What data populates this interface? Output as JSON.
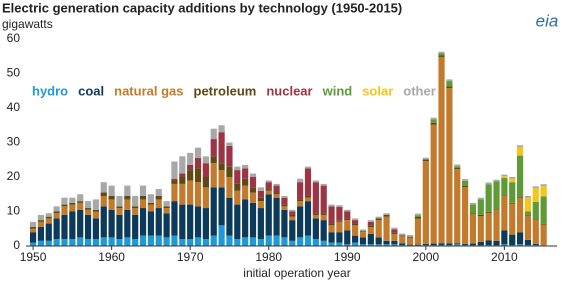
{
  "chart_data": {
    "type": "stacked-bar",
    "title": "Electric generation capacity additions by technology (1950-2015)",
    "subtitle": "gigawatts",
    "x_label": "initial operation year",
    "x": [
      1950,
      1951,
      1952,
      1953,
      1954,
      1955,
      1956,
      1957,
      1958,
      1959,
      1960,
      1961,
      1962,
      1963,
      1964,
      1965,
      1966,
      1967,
      1968,
      1969,
      1970,
      1971,
      1972,
      1973,
      1974,
      1975,
      1976,
      1977,
      1978,
      1979,
      1980,
      1981,
      1982,
      1983,
      1984,
      1985,
      1986,
      1987,
      1988,
      1989,
      1990,
      1991,
      1992,
      1993,
      1994,
      1995,
      1996,
      1997,
      1998,
      1999,
      2000,
      2001,
      2002,
      2003,
      2004,
      2005,
      2006,
      2007,
      2008,
      2009,
      2010,
      2011,
      2012,
      2013,
      2014,
      2015
    ],
    "xlim": [
      1949.1,
      2016.7
    ],
    "xticks": [
      1950,
      1960,
      1970,
      1980,
      1990,
      2000,
      2010
    ],
    "ylim": [
      0,
      60
    ],
    "yticks": [
      0,
      10,
      20,
      30,
      40,
      50,
      60
    ],
    "grid": false,
    "series": [
      {
        "name": "hydro",
        "color": "#1e9ad6",
        "values": [
          1,
          1.5,
          1.5,
          2,
          2,
          2,
          2.5,
          2,
          2,
          2.5,
          2.5,
          2,
          2.5,
          2,
          3,
          3,
          3,
          2.5,
          3,
          2,
          2,
          2.5,
          2,
          3,
          6,
          3,
          2,
          2.5,
          2.5,
          2,
          3,
          3,
          2.5,
          1.5,
          2.5,
          3,
          2,
          1.5,
          1,
          1,
          0.5,
          1,
          0.5,
          0.5,
          0.5,
          0.5,
          0.5,
          0.3,
          0.2,
          0.2,
          0.3,
          0.2,
          0.3,
          0.3,
          0.5,
          0.3,
          0.2,
          0.2,
          0.3,
          0.2,
          0.5,
          0.3,
          0.5,
          0.3,
          0.3,
          0.2
        ]
      },
      {
        "name": "coal",
        "color": "#0b3a5a",
        "values": [
          3,
          4,
          5,
          6,
          7,
          8,
          8,
          7,
          6,
          9,
          8,
          7,
          8,
          7,
          8,
          7,
          8,
          7,
          10,
          10,
          10,
          9,
          9,
          14,
          11,
          11,
          10,
          11,
          10,
          9,
          12,
          11,
          8,
          6,
          9,
          10,
          6,
          6,
          3,
          3,
          4,
          2,
          2,
          3,
          2,
          1,
          1,
          0.5,
          0.2,
          0.2,
          0.3,
          0.5,
          0.5,
          0.5,
          0.3,
          0.3,
          0.5,
          1,
          1.3,
          1.3,
          4,
          3,
          3.5,
          1.5,
          0.3,
          0
        ]
      },
      {
        "name": "natural gas",
        "color": "#c27a2c",
        "values": [
          1,
          1.5,
          1.5,
          1.5,
          2.5,
          2,
          2,
          1.5,
          2,
          3,
          3,
          2,
          3,
          2,
          2.5,
          2,
          2.5,
          1.5,
          5,
          6,
          7,
          7,
          6,
          7,
          5,
          6,
          4,
          4,
          3,
          2,
          1,
          1,
          1,
          1,
          1.5,
          1,
          1,
          1.5,
          2,
          3,
          3,
          3,
          1.5,
          2,
          5,
          7,
          2,
          2,
          2,
          7.5,
          24,
          34.5,
          54,
          45,
          21.5,
          16.5,
          8.5,
          7.5,
          8,
          9,
          10,
          9,
          10,
          7,
          7,
          6
        ]
      },
      {
        "name": "petroleum",
        "color": "#5c4a12",
        "values": [
          0.5,
          0.5,
          0.5,
          0.5,
          0.5,
          0.5,
          0.5,
          0.5,
          0.5,
          1,
          1,
          0.5,
          1,
          0.5,
          1,
          0.5,
          1,
          0.5,
          1,
          2,
          3,
          4,
          3,
          2,
          2,
          3,
          2,
          2,
          1.5,
          1,
          0.5,
          0.5,
          0.5,
          0.5,
          0.5,
          0.5,
          0.5,
          0.5,
          0.5,
          0.3,
          0.5,
          0.5,
          0.3,
          0.5,
          0.5,
          0.5,
          0.3,
          0.3,
          0.3,
          0.5,
          0.5,
          0.5,
          0.5,
          0.5,
          0.3,
          0.3,
          0.3,
          0.3,
          0.3,
          0.2,
          0.2,
          0.2,
          0.2,
          0.2,
          0.2,
          0.2
        ]
      },
      {
        "name": "nuclear",
        "color": "#9b3546",
        "values": [
          0,
          0,
          0,
          0,
          0,
          0,
          0,
          0,
          0,
          0,
          0,
          0,
          0,
          0,
          0,
          0,
          0,
          0,
          0.5,
          1,
          1.5,
          3,
          4,
          5,
          9,
          6,
          4,
          3,
          3,
          2,
          2,
          2,
          2,
          1,
          5,
          8,
          9,
          8,
          5,
          4,
          2,
          1,
          0,
          1,
          0,
          0,
          1,
          0,
          0,
          0,
          0,
          0,
          0,
          0,
          0,
          0,
          0,
          0,
          0,
          0,
          0,
          0,
          0,
          0,
          0,
          0
        ]
      },
      {
        "name": "wind",
        "color": "#5e9b37",
        "values": [
          0,
          0,
          0,
          0,
          0,
          0,
          0,
          0,
          0,
          0,
          0,
          0,
          0,
          0,
          0,
          0,
          0,
          0,
          0,
          0,
          0,
          0,
          0,
          0,
          0,
          0,
          0,
          0,
          0,
          0,
          0,
          0,
          0,
          0,
          0,
          0,
          0,
          0,
          0,
          0,
          0,
          0,
          0,
          0,
          0,
          0,
          0,
          0,
          0,
          0.5,
          0,
          1,
          0.5,
          1.5,
          0.5,
          1.5,
          2.5,
          4.5,
          8,
          8,
          5,
          6,
          12,
          1,
          5,
          8
        ]
      },
      {
        "name": "solar",
        "color": "#f5c51c",
        "values": [
          0,
          0,
          0,
          0,
          0,
          0,
          0,
          0,
          0,
          0,
          0,
          0,
          0,
          0,
          0,
          0,
          0,
          0,
          0,
          0,
          0,
          0,
          0,
          0,
          0,
          0,
          0,
          0,
          0,
          0,
          0,
          0,
          0,
          0,
          0,
          0,
          0,
          0,
          0,
          0,
          0,
          0,
          0,
          0,
          0,
          0,
          0,
          0,
          0,
          0,
          0,
          0,
          0,
          0,
          0,
          0,
          0,
          0,
          0,
          0,
          0.5,
          1,
          2.5,
          4,
          4,
          3
        ]
      },
      {
        "name": "other",
        "color": "#a8a8a8",
        "values": [
          1.5,
          1.5,
          1,
          1.5,
          2,
          1.5,
          2,
          2,
          3,
          3,
          3,
          3,
          3,
          3,
          3,
          2.5,
          2,
          1.5,
          5,
          5,
          3.5,
          3,
          2,
          3,
          2,
          1,
          1,
          1,
          1,
          1,
          0.5,
          0.5,
          0.5,
          0.5,
          1,
          0.5,
          0.5,
          0.5,
          0.5,
          0.5,
          0.5,
          0.5,
          0.5,
          0.5,
          0.5,
          0.5,
          0.5,
          0.5,
          0.5,
          0.5,
          0.5,
          0.5,
          0.5,
          0.5,
          0.5,
          0.5,
          0.5,
          0.5,
          0.5,
          0.5,
          0.5,
          0.5,
          0.5,
          0.5,
          0.5,
          0.5
        ]
      }
    ],
    "logo": "eia"
  }
}
